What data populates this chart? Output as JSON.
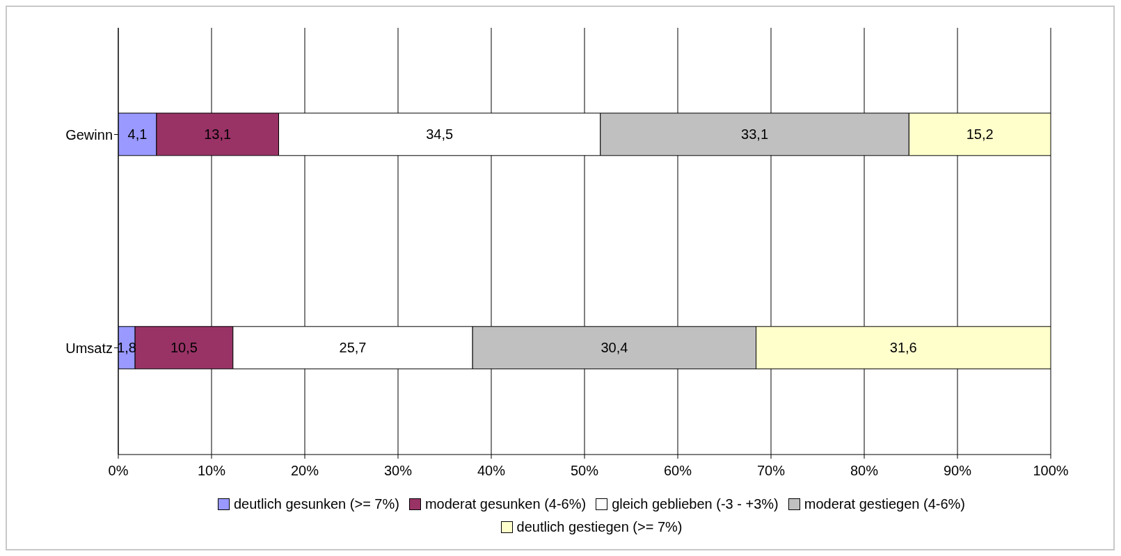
{
  "chart_data": {
    "type": "bar",
    "orientation": "horizontal",
    "stacked": true,
    "categories": [
      "Gewinn",
      "Umsatz"
    ],
    "series": [
      {
        "name": "deutlich gesunken (>= 7%)",
        "color": "#9999ff",
        "values": [
          4.1,
          1.8
        ],
        "value_labels": [
          "4,1",
          "1,8"
        ]
      },
      {
        "name": "moderat gesunken (4-6%)",
        "color": "#993366",
        "values": [
          13.1,
          10.5
        ],
        "value_labels": [
          "13,1",
          "10,5"
        ]
      },
      {
        "name": "gleich geblieben (-3 - +3%)",
        "color": "#ffffff",
        "values": [
          34.5,
          25.7
        ],
        "value_labels": [
          "34,5",
          "25,7"
        ]
      },
      {
        "name": "moderat gestiegen (4-6%)",
        "color": "#c0c0c0",
        "values": [
          33.1,
          30.4
        ],
        "value_labels": [
          "33,1",
          "30,4"
        ]
      },
      {
        "name": "deutlich gestiegen (>= 7%)",
        "color": "#ffffcc",
        "values": [
          15.2,
          31.6
        ],
        "value_labels": [
          "15,2",
          "31,6"
        ]
      }
    ],
    "xlim": [
      0,
      100
    ],
    "xticks": [
      {
        "value": 0,
        "label": "0%"
      },
      {
        "value": 10,
        "label": "10%"
      },
      {
        "value": 20,
        "label": "20%"
      },
      {
        "value": 30,
        "label": "30%"
      },
      {
        "value": 40,
        "label": "40%"
      },
      {
        "value": 50,
        "label": "50%"
      },
      {
        "value": 60,
        "label": "60%"
      },
      {
        "value": 70,
        "label": "70%"
      },
      {
        "value": 80,
        "label": "80%"
      },
      {
        "value": 90,
        "label": "90%"
      },
      {
        "value": 100,
        "label": "100%"
      }
    ],
    "grid": "x",
    "legend": "bottom"
  }
}
